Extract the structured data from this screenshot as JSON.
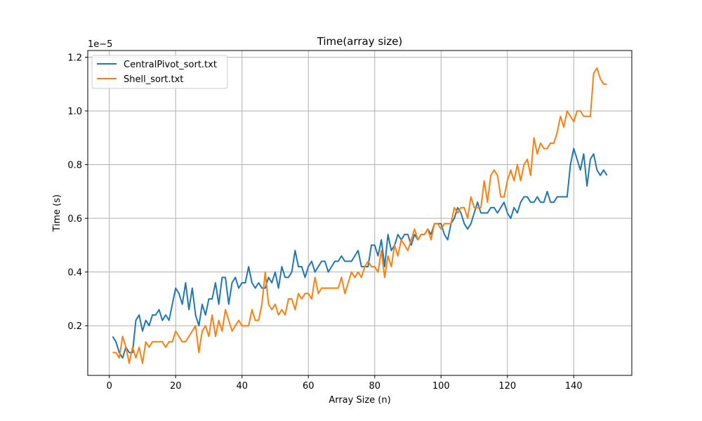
{
  "chart_data": {
    "type": "line",
    "title": "Time(array size)",
    "xlabel": "Array Size (n)",
    "ylabel": "Time (s)",
    "y_offset_text": "1e−5",
    "xlim": [
      -6.5,
      157.5
    ],
    "ylim": [
      0.015,
      1.225
    ],
    "x_ticks": [
      0,
      20,
      40,
      60,
      80,
      100,
      120,
      140
    ],
    "x_tick_labels": [
      "0",
      "20",
      "40",
      "60",
      "80",
      "100",
      "120",
      "140"
    ],
    "y_ticks": [
      0.2,
      0.4,
      0.6,
      0.8,
      1.0,
      1.2
    ],
    "y_tick_labels": [
      "0.2",
      "0.4",
      "0.6",
      "0.8",
      "1.0",
      "1.2"
    ],
    "grid": true,
    "legend_position": "top-left",
    "x": [
      1,
      2,
      3,
      4,
      5,
      6,
      7,
      8,
      9,
      10,
      11,
      12,
      13,
      14,
      15,
      16,
      17,
      18,
      19,
      20,
      21,
      22,
      23,
      24,
      25,
      26,
      27,
      28,
      29,
      30,
      31,
      32,
      33,
      34,
      35,
      36,
      37,
      38,
      39,
      40,
      41,
      42,
      43,
      44,
      45,
      46,
      47,
      48,
      49,
      50,
      51,
      52,
      53,
      54,
      55,
      56,
      57,
      58,
      59,
      60,
      61,
      62,
      63,
      64,
      65,
      66,
      67,
      68,
      69,
      70,
      71,
      72,
      73,
      74,
      75,
      76,
      77,
      78,
      79,
      80,
      81,
      82,
      83,
      84,
      85,
      86,
      87,
      88,
      89,
      90,
      91,
      92,
      93,
      94,
      95,
      96,
      97,
      98,
      99,
      100,
      101,
      102,
      103,
      104,
      105,
      106,
      107,
      108,
      109,
      110,
      111,
      112,
      113,
      114,
      115,
      116,
      117,
      118,
      119,
      120,
      121,
      122,
      123,
      124,
      125,
      126,
      127,
      128,
      129,
      130,
      131,
      132,
      133,
      134,
      135,
      136,
      137,
      138,
      139,
      140,
      141,
      142,
      143,
      144,
      145,
      146,
      147,
      148,
      149,
      150
    ],
    "series": [
      {
        "name": "CentralPivot_sort.txt",
        "color": "#1f77b4",
        "values": [
          0.16,
          0.14,
          0.1,
          0.08,
          0.12,
          0.1,
          0.1,
          0.22,
          0.24,
          0.18,
          0.22,
          0.2,
          0.24,
          0.24,
          0.26,
          0.22,
          0.24,
          0.22,
          0.28,
          0.34,
          0.32,
          0.28,
          0.36,
          0.26,
          0.34,
          0.24,
          0.2,
          0.28,
          0.24,
          0.3,
          0.3,
          0.36,
          0.28,
          0.38,
          0.38,
          0.28,
          0.36,
          0.38,
          0.34,
          0.36,
          0.36,
          0.42,
          0.36,
          0.34,
          0.36,
          0.34,
          0.34,
          0.38,
          0.36,
          0.4,
          0.34,
          0.42,
          0.38,
          0.38,
          0.4,
          0.48,
          0.42,
          0.42,
          0.38,
          0.42,
          0.44,
          0.4,
          0.42,
          0.44,
          0.44,
          0.4,
          0.42,
          0.44,
          0.44,
          0.46,
          0.44,
          0.44,
          0.44,
          0.46,
          0.48,
          0.42,
          0.42,
          0.42,
          0.5,
          0.5,
          0.46,
          0.52,
          0.42,
          0.54,
          0.48,
          0.5,
          0.54,
          0.52,
          0.54,
          0.54,
          0.5,
          0.54,
          0.52,
          0.54,
          0.54,
          0.56,
          0.54,
          0.58,
          0.58,
          0.58,
          0.54,
          0.52,
          0.58,
          0.6,
          0.64,
          0.62,
          0.58,
          0.56,
          0.58,
          0.62,
          0.66,
          0.62,
          0.62,
          0.62,
          0.64,
          0.64,
          0.62,
          0.64,
          0.66,
          0.62,
          0.6,
          0.64,
          0.62,
          0.66,
          0.68,
          0.68,
          0.66,
          0.66,
          0.68,
          0.66,
          0.66,
          0.7,
          0.66,
          0.66,
          0.68,
          0.68,
          0.68,
          0.68,
          0.8,
          0.86,
          0.82,
          0.78,
          0.84,
          0.72,
          0.82,
          0.84,
          0.78,
          0.76,
          0.78,
          0.76
        ]
      },
      {
        "name": "Shell_sort.txt",
        "color": "#ff7f0e",
        "values": [
          0.1,
          0.1,
          0.08,
          0.16,
          0.12,
          0.06,
          0.12,
          0.08,
          0.12,
          0.06,
          0.14,
          0.12,
          0.14,
          0.14,
          0.14,
          0.14,
          0.12,
          0.14,
          0.14,
          0.18,
          0.16,
          0.14,
          0.14,
          0.16,
          0.18,
          0.2,
          0.1,
          0.18,
          0.2,
          0.16,
          0.24,
          0.16,
          0.22,
          0.18,
          0.26,
          0.22,
          0.18,
          0.2,
          0.22,
          0.2,
          0.2,
          0.2,
          0.26,
          0.22,
          0.22,
          0.28,
          0.4,
          0.28,
          0.26,
          0.28,
          0.24,
          0.26,
          0.24,
          0.3,
          0.3,
          0.26,
          0.32,
          0.3,
          0.32,
          0.32,
          0.3,
          0.38,
          0.32,
          0.34,
          0.34,
          0.34,
          0.34,
          0.34,
          0.34,
          0.38,
          0.32,
          0.36,
          0.4,
          0.38,
          0.4,
          0.38,
          0.42,
          0.44,
          0.42,
          0.42,
          0.4,
          0.48,
          0.38,
          0.46,
          0.42,
          0.5,
          0.46,
          0.52,
          0.5,
          0.48,
          0.52,
          0.56,
          0.52,
          0.54,
          0.54,
          0.56,
          0.52,
          0.58,
          0.58,
          0.56,
          0.58,
          0.58,
          0.58,
          0.64,
          0.62,
          0.64,
          0.64,
          0.6,
          0.68,
          0.64,
          0.64,
          0.64,
          0.74,
          0.66,
          0.76,
          0.78,
          0.76,
          0.68,
          0.68,
          0.74,
          0.78,
          0.74,
          0.8,
          0.74,
          0.8,
          0.82,
          0.76,
          0.9,
          0.84,
          0.88,
          0.86,
          0.86,
          0.88,
          0.88,
          0.92,
          0.98,
          0.94,
          1.0,
          0.98,
          0.96,
          1.0,
          1.0,
          0.98,
          0.98,
          0.98,
          1.14,
          1.16,
          1.12,
          1.1,
          1.1
        ]
      }
    ]
  }
}
